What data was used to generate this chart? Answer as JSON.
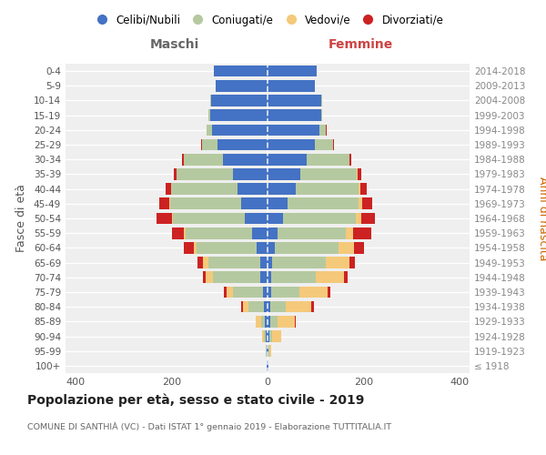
{
  "age_groups": [
    "100+",
    "95-99",
    "90-94",
    "85-89",
    "80-84",
    "75-79",
    "70-74",
    "65-69",
    "60-64",
    "55-59",
    "50-54",
    "45-49",
    "40-44",
    "35-39",
    "30-34",
    "25-29",
    "20-24",
    "15-19",
    "10-14",
    "5-9",
    "0-4"
  ],
  "birth_years": [
    "≤ 1918",
    "1919-1923",
    "1924-1928",
    "1929-1933",
    "1934-1938",
    "1939-1943",
    "1944-1948",
    "1949-1953",
    "1954-1958",
    "1959-1963",
    "1964-1968",
    "1969-1973",
    "1974-1978",
    "1979-1983",
    "1984-1988",
    "1989-1993",
    "1994-1998",
    "1999-2003",
    "2004-2008",
    "2009-2013",
    "2014-2018"
  ],
  "colors": {
    "celibi": "#4472c4",
    "coniugati": "#b5c9a0",
    "vedovi": "#f5c97a",
    "divorziati": "#cc2222"
  },
  "legend_labels": [
    "Celibi/Nubili",
    "Coniugati/e",
    "Vedovi/e",
    "Divorziati/e"
  ],
  "maschi": {
    "celibi": [
      1,
      2,
      3,
      5,
      8,
      10,
      15,
      15,
      22,
      32,
      48,
      55,
      62,
      72,
      92,
      105,
      115,
      120,
      118,
      108,
      112
    ],
    "coniugati": [
      0,
      1,
      4,
      9,
      32,
      62,
      98,
      108,
      125,
      138,
      148,
      148,
      138,
      118,
      82,
      32,
      12,
      3,
      1,
      0,
      0
    ],
    "vedovi": [
      0,
      1,
      5,
      10,
      12,
      14,
      16,
      11,
      6,
      4,
      2,
      1,
      0,
      0,
      0,
      0,
      0,
      0,
      0,
      0,
      0
    ],
    "divorziati": [
      0,
      0,
      0,
      0,
      3,
      4,
      6,
      11,
      22,
      24,
      32,
      22,
      11,
      5,
      3,
      2,
      0,
      0,
      0,
      0,
      0
    ]
  },
  "femmine": {
    "nubili": [
      1,
      2,
      4,
      5,
      6,
      8,
      8,
      10,
      15,
      20,
      32,
      42,
      58,
      68,
      82,
      98,
      108,
      112,
      112,
      98,
      102
    ],
    "coniugate": [
      0,
      2,
      6,
      16,
      32,
      58,
      92,
      112,
      132,
      142,
      152,
      148,
      132,
      118,
      88,
      38,
      14,
      2,
      1,
      0,
      0
    ],
    "vedove": [
      0,
      4,
      18,
      35,
      52,
      58,
      58,
      48,
      32,
      16,
      11,
      6,
      3,
      2,
      1,
      0,
      0,
      0,
      0,
      0,
      0
    ],
    "divorziate": [
      0,
      0,
      0,
      2,
      6,
      6,
      8,
      11,
      22,
      38,
      28,
      22,
      14,
      6,
      3,
      2,
      1,
      0,
      0,
      0,
      0
    ]
  },
  "xlim": 420,
  "title": "Popolazione per età, sesso e stato civile - 2019",
  "subtitle": "COMUNE DI SANTHIÀ (VC) - Dati ISTAT 1° gennaio 2019 - Elaborazione TUTTITALIA.IT",
  "ylabel_left": "Fasce di età",
  "ylabel_right": "Anni di nascita",
  "xlabel_maschi": "Maschi",
  "xlabel_femmine": "Femmine",
  "bg_color": "#efefef",
  "maschi_label_color": "#666666",
  "femmine_label_color": "#cc4444"
}
